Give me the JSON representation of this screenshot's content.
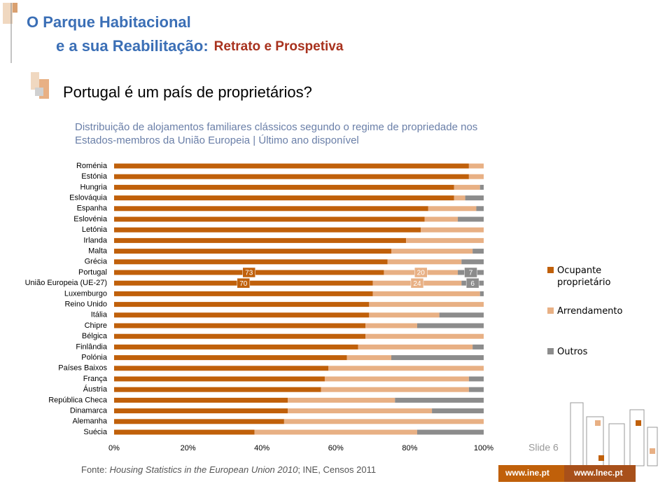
{
  "header": {
    "title_line1": "O Parque Habitacional",
    "title_line2": "e a sua Reabilitação:",
    "title_line2_suffix": "Retrato e Prospetiva"
  },
  "slide_title": "Portugal é um país de proprietários?",
  "footer": {
    "source_prefix": "Fonte:",
    "source_italic": "Housing Statistics in the European Union 2010",
    "source_suffix": "; INE, Censos 2011",
    "slide_number": "Slide 6",
    "logo_ine": "www.ine.pt",
    "logo_lnec": "www.lnec.pt"
  },
  "chart_data": {
    "type": "stacked-bar-horizontal",
    "title": "Distribuição de alojamentos familiares clássicos segundo o regime de propriedade nos Estados-membros da União Europeia | Último ano disponível",
    "categories": [
      "Roménia",
      "Estónia",
      "Hungria",
      "Eslováquia",
      "Espanha",
      "Eslovénia",
      "Letónia",
      "Irlanda",
      "Malta",
      "Grécia",
      "Portugal",
      "União Europeia (UE-27)",
      "Luxemburgo",
      "Reino Unido",
      "Itália",
      "Chipre",
      "Bélgica",
      "Finlândia",
      "Polónia",
      "Países Baixos",
      "França",
      "Áustria",
      "República Checa",
      "Dinamarca",
      "Alemanha",
      "Suécia"
    ],
    "series": [
      {
        "name": "Ocupante proprietário",
        "color": "#c0600a",
        "values": [
          96,
          96,
          92,
          92,
          85,
          84,
          83,
          79,
          75,
          74,
          73,
          70,
          70,
          69,
          69,
          68,
          68,
          66,
          63,
          58,
          57,
          56,
          47,
          47,
          46,
          38
        ]
      },
      {
        "name": "Arrendamento",
        "color": "#e8b084",
        "values": [
          4,
          4,
          7,
          3,
          13,
          9,
          17,
          21,
          22,
          20,
          20,
          24,
          29,
          31,
          19,
          14,
          32,
          31,
          12,
          42,
          39,
          40,
          29,
          39,
          54,
          44
        ]
      },
      {
        "name": "Outros",
        "color": "#8c8c8c",
        "values": [
          0,
          0,
          1,
          5,
          2,
          7,
          0,
          0,
          3,
          6,
          7,
          6,
          1,
          0,
          12,
          18,
          0,
          3,
          25,
          0,
          4,
          4,
          24,
          14,
          0,
          18
        ]
      }
    ],
    "labeled_rows": [
      10,
      11
    ],
    "xlim": [
      0,
      100
    ],
    "xticks": [
      {
        "value": 0,
        "label": "0%"
      },
      {
        "value": 20,
        "label": "20%"
      },
      {
        "value": 40,
        "label": "40%"
      },
      {
        "value": 60,
        "label": "60%"
      },
      {
        "value": 80,
        "label": "80%"
      },
      {
        "value": 100,
        "label": "100%"
      }
    ],
    "grid": false,
    "legend": "right"
  }
}
